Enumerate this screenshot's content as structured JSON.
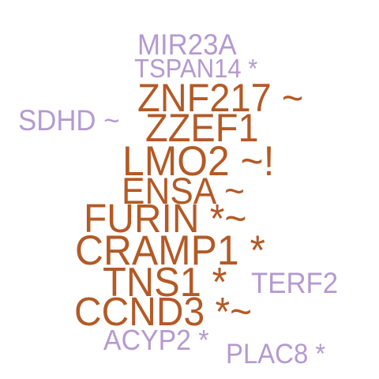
{
  "palette": {
    "primary": "#b35a26",
    "secondary": "#b49ad0",
    "background": "#ffffff"
  },
  "words": [
    {
      "id": "mir23a",
      "text": "MIR23A",
      "group": "secondary"
    },
    {
      "id": "tspan14",
      "text": "TSPAN14 *",
      "group": "secondary"
    },
    {
      "id": "znf217",
      "text": "ZNF217 ~",
      "group": "primary"
    },
    {
      "id": "sdhd",
      "text": "SDHD ~",
      "group": "secondary"
    },
    {
      "id": "zzef1",
      "text": "ZZEF1",
      "group": "primary"
    },
    {
      "id": "lmo2",
      "text": "LMO2 ~!",
      "group": "primary"
    },
    {
      "id": "ensa",
      "text": "ENSA ~",
      "group": "primary"
    },
    {
      "id": "furin",
      "text": "FURIN *~",
      "group": "primary"
    },
    {
      "id": "cramp1",
      "text": "CRAMP1 *",
      "group": "primary"
    },
    {
      "id": "tns1",
      "text": "TNS1 *",
      "group": "primary"
    },
    {
      "id": "terf2",
      "text": "TERF2",
      "group": "secondary"
    },
    {
      "id": "ccnd3",
      "text": "CCND3 *~",
      "group": "primary"
    },
    {
      "id": "acyp2",
      "text": "ACYP2 *",
      "group": "secondary"
    },
    {
      "id": "plac8",
      "text": "PLAC8 *",
      "group": "secondary"
    }
  ]
}
